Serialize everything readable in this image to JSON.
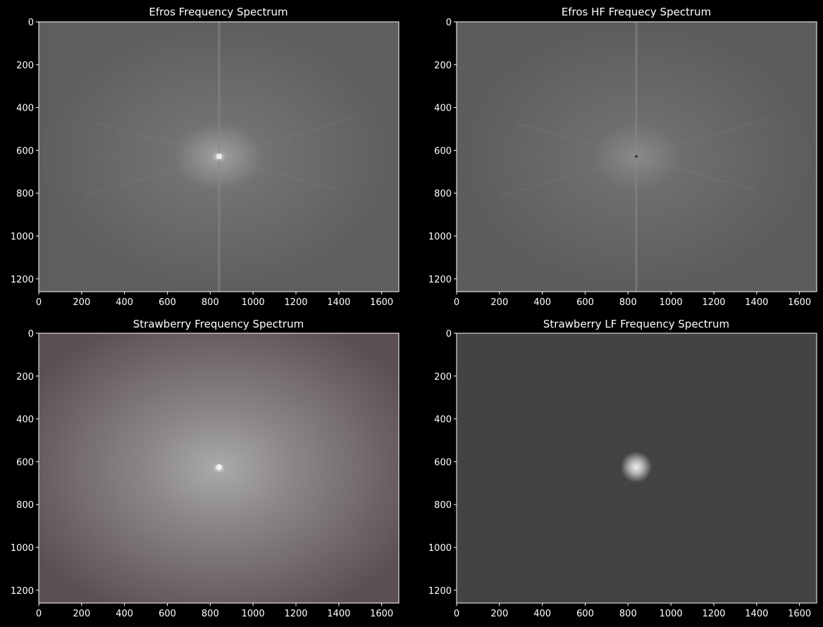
{
  "panels": [
    {
      "id": "efros-spectrum",
      "title": "Efros Frequency Spectrum",
      "image": "efros-fft",
      "xticks": [
        "0",
        "200",
        "400",
        "600",
        "800",
        "1000",
        "1200",
        "1400",
        "1600"
      ],
      "yticks": [
        "0",
        "200",
        "400",
        "600",
        "800",
        "1000",
        "1200"
      ],
      "xlim": [
        0,
        1680
      ],
      "ylim": [
        1260,
        0
      ]
    },
    {
      "id": "efros-hf-spectrum",
      "title": "Efros HF Frequecy Spectrum",
      "image": "efros-hf-fft",
      "xticks": [
        "0",
        "200",
        "400",
        "600",
        "800",
        "1000",
        "1200",
        "1400",
        "1600"
      ],
      "yticks": [
        "0",
        "200",
        "400",
        "600",
        "800",
        "1000",
        "1200"
      ],
      "xlim": [
        0,
        1680
      ],
      "ylim": [
        1260,
        0
      ]
    },
    {
      "id": "strawberry-spectrum",
      "title": "Strawberry Frequency Spectrum",
      "image": "strawberry-fft",
      "xticks": [
        "0",
        "200",
        "400",
        "600",
        "800",
        "1000",
        "1200",
        "1400",
        "1600"
      ],
      "yticks": [
        "0",
        "200",
        "400",
        "600",
        "800",
        "1000",
        "1200"
      ],
      "xlim": [
        0,
        1680
      ],
      "ylim": [
        1260,
        0
      ]
    },
    {
      "id": "strawberry-lf-spectrum",
      "title": "Strawberry LF Frequency Spectrum",
      "image": "strawberry-lf-fft",
      "xticks": [
        "0",
        "200",
        "400",
        "600",
        "800",
        "1000",
        "1200",
        "1400",
        "1600"
      ],
      "yticks": [
        "0",
        "200",
        "400",
        "600",
        "800",
        "1000",
        "1200"
      ],
      "xlim": [
        0,
        1680
      ],
      "ylim": [
        1260,
        0
      ]
    }
  ],
  "colors": {
    "background": "#000000",
    "text": "#ffffff",
    "axes": "#ffffff"
  }
}
